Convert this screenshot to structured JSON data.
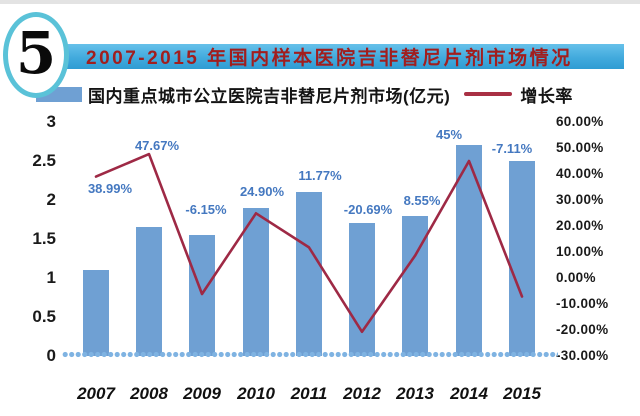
{
  "badge": {
    "number": "5",
    "ring_color": "#5ac2d8"
  },
  "header": {
    "title": "2007-2015 年国内样本医院吉非替尼片剂市场情况",
    "banner_color": "#42aadd",
    "title_color": "#a11e1e"
  },
  "legend": {
    "bar_label": "国内重点城市公立医院吉非替尼片剂市场(亿元)",
    "line_label": "增长率"
  },
  "chart_data": {
    "type": "bar",
    "combo": "bar+line",
    "title": "2007-2015 年国内样本医院吉非替尼片剂市场情况",
    "categories": [
      "2007",
      "2008",
      "2009",
      "2010",
      "2011",
      "2012",
      "2013",
      "2014",
      "2015"
    ],
    "series": [
      {
        "name": "国内重点城市公立医院吉非替尼片剂市场(亿元)",
        "type": "bar",
        "axis": "left",
        "color": "#6FA0D3",
        "values": [
          1.1,
          1.65,
          1.55,
          1.9,
          2.1,
          1.7,
          1.8,
          2.7,
          2.5
        ]
      },
      {
        "name": "增长率",
        "type": "line",
        "axis": "right",
        "color": "#9E2945",
        "values": [
          38.99,
          47.67,
          -6.15,
          24.9,
          11.77,
          -20.69,
          8.55,
          45,
          -7.11
        ],
        "point_labels": [
          "38.99%",
          "47.67%",
          "-6.15%",
          "24.90%",
          "11.77%",
          "-20.69%",
          "8.55%",
          "45%",
          "-7.11%"
        ]
      }
    ],
    "left_axis": {
      "min": 0,
      "max": 3,
      "ticks": [
        "3",
        "2.5",
        "2",
        "1.5",
        "1",
        "0.5",
        "0"
      ]
    },
    "right_axis": {
      "min": -30,
      "max": 60,
      "ticks": [
        "60.00%",
        "50.00%",
        "40.00%",
        "30.00%",
        "20.00%",
        "10.00%",
        "0.00%",
        "-10.00%",
        "-20.00%",
        "-30.00%"
      ]
    },
    "grid": false,
    "legend_position": "top",
    "point_label_color": "#4478C0",
    "baseline_color": "#7FB3E2"
  }
}
